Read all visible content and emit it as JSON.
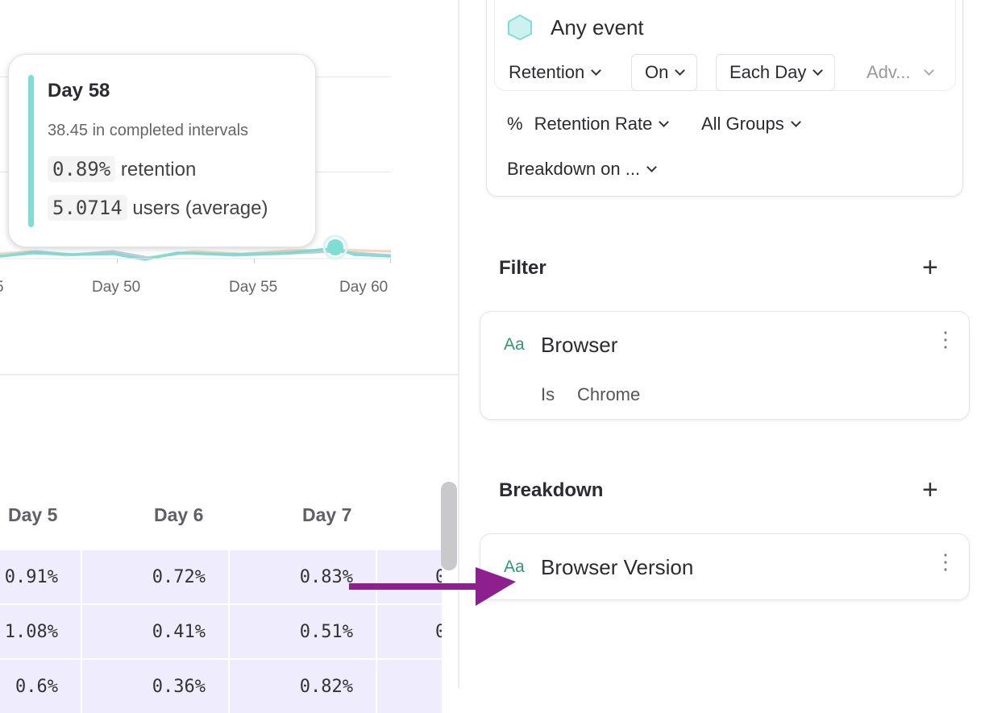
{
  "chart": {
    "x_ticks": [
      "5",
      "Day 50",
      "Day 55",
      "Day 60"
    ],
    "accent": "#7ddfd3"
  },
  "tooltip": {
    "title": "Day 58",
    "subtitle": "38.45 in completed intervals",
    "retention_value": "0.89%",
    "retention_label": "retention",
    "users_value": "5.0714",
    "users_label": "users (average)"
  },
  "table": {
    "headers": [
      "Day 5",
      "Day 6",
      "Day 7"
    ],
    "rows": [
      [
        "0.91%",
        "0.72%",
        "0.83%",
        "0"
      ],
      [
        "1.08%",
        "0.41%",
        "0.51%",
        "0"
      ],
      [
        "0.6%",
        "0.36%",
        "0.82%",
        ""
      ]
    ]
  },
  "query": {
    "event": "Any event",
    "retention": "Retention",
    "on": "On",
    "interval": "Each Day",
    "advanced": "Adv...",
    "percent_symbol": "%",
    "measure": "Retention Rate",
    "groups": "All Groups",
    "breakdown_on": "Breakdown on ..."
  },
  "filter": {
    "heading": "Filter",
    "type_icon": "Aa",
    "property": "Browser",
    "operator": "Is",
    "value": "Chrome"
  },
  "breakdown": {
    "heading": "Breakdown",
    "type_icon": "Aa",
    "property": "Browser Version"
  },
  "annotation": {
    "arrow_color": "#8e1f8f"
  }
}
